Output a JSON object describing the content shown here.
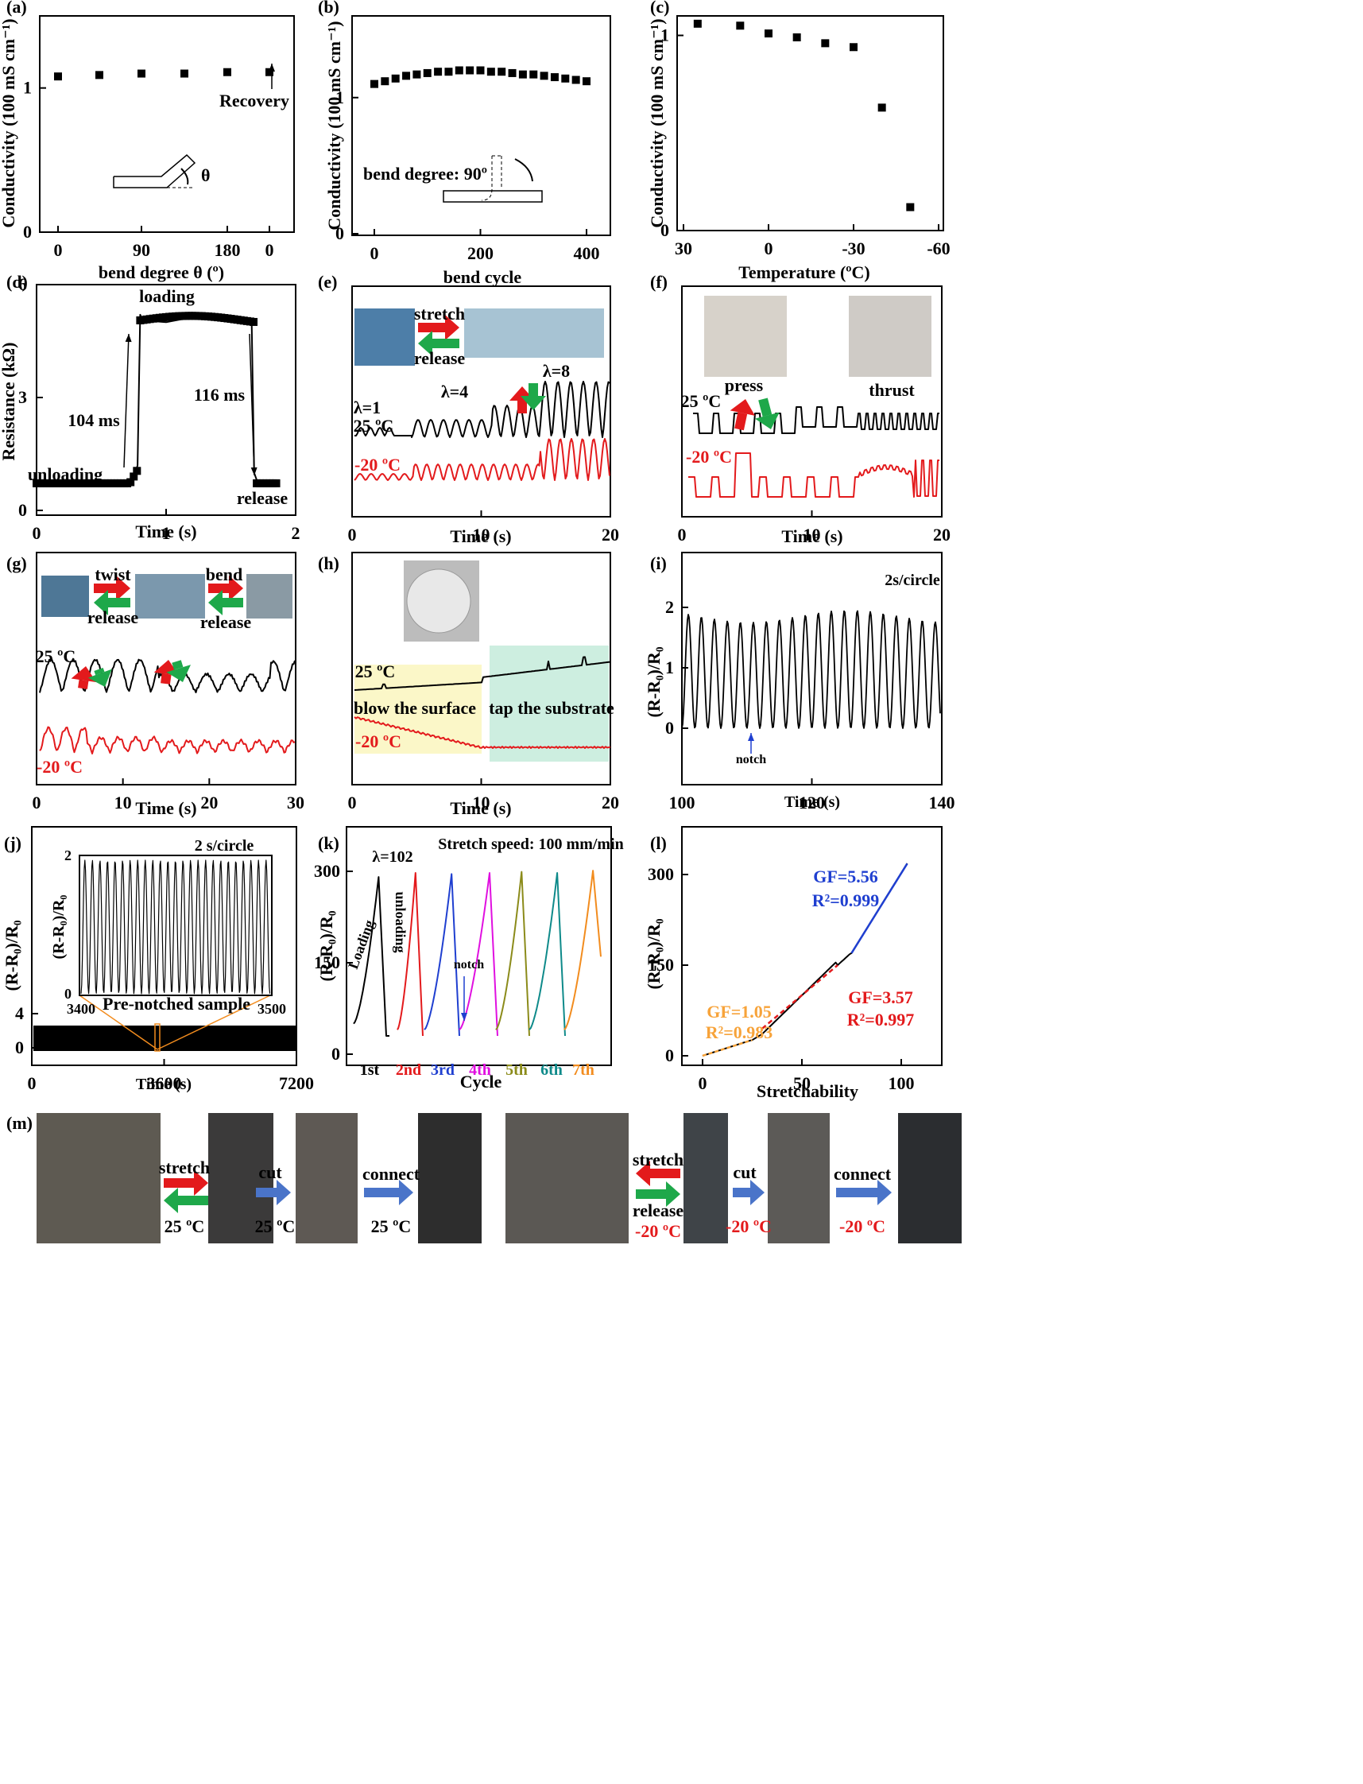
{
  "colors": {
    "red": "#e31a1c",
    "green": "#1ea84a",
    "blue": "#1f3fd0",
    "orange": "#f7a33a",
    "black": "#000000",
    "yellowbox": "#fbf7c8",
    "greenbox": "#cdeee0",
    "arrowblue": "#4a74c9",
    "magenta": "#e010e0",
    "olive": "#8b8b1a",
    "teal": "#0e8a8a",
    "orangeline": "#f28c1e"
  },
  "panels": {
    "a": {
      "label": "(a)",
      "ylabel": "Conductivity (100 mS cm⁻¹)",
      "xlabel": "bend degree θ (º)",
      "yticks": [
        "0",
        "1"
      ],
      "xticks": [
        "0",
        "90",
        "180",
        "0"
      ],
      "annotation": "Recovery",
      "theta": "θ"
    },
    "b": {
      "label": "(b)",
      "ylabel": "Conductivity (100 mS cm⁻¹)",
      "xlabel": "bend cycle",
      "yticks": [
        "0",
        "1"
      ],
      "xticks": [
        "0",
        "200",
        "400"
      ],
      "annotation": "bend degree: 90º"
    },
    "c": {
      "label": "(c)",
      "ylabel": "Conductivity (100 mS cm⁻¹)",
      "xlabel": "Temperature (ºC)",
      "yticks": [
        "0",
        "1"
      ],
      "xticks": [
        "30",
        "0",
        "-30",
        "-60"
      ]
    },
    "d": {
      "label": "(d)",
      "ylabel": "Resistance (kΩ)",
      "xlabel": "Time (s)",
      "yticks": [
        "0",
        "3",
        "6"
      ],
      "xticks": [
        "0",
        "1",
        "2"
      ],
      "loading": "loading",
      "unloading": "unloading",
      "release": "release",
      "t1": "104 ms",
      "t2": "116 ms"
    },
    "e": {
      "label": "(e)",
      "xlabel": "Time (s)",
      "xticks": [
        "0",
        "10",
        "20"
      ],
      "stretch": "stretch",
      "release": "release",
      "l1": "λ=1",
      "l4": "λ=4",
      "l8": "λ=8",
      "t25": "25 ºC",
      "tm20": "-20 ºC"
    },
    "f": {
      "label": "(f)",
      "xlabel": "Time (s)",
      "xticks": [
        "0",
        "10",
        "20"
      ],
      "press": "press",
      "thrust": "thrust",
      "t25": "25 ºC",
      "tm20": "-20 ºC"
    },
    "g": {
      "label": "(g)",
      "xlabel": "Time (s)",
      "xticks": [
        "0",
        "10",
        "20",
        "30"
      ],
      "twist": "twist",
      "bend": "bend",
      "release1": "release",
      "release2": "release",
      "t25": "25 ºC",
      "tm20": "-20 ºC"
    },
    "h": {
      "label": "(h)",
      "xlabel": "Time (s)",
      "xticks": [
        "0",
        "10",
        "20"
      ],
      "blow": "blow the surface",
      "tap": "tap the substrate",
      "t25": "25 ºC",
      "tm20": "-20 ºC"
    },
    "i": {
      "label": "(i)",
      "ylabel": "(R-R₀)/R₀",
      "xlabel": "Time (s)",
      "yticks": [
        "0",
        "1",
        "2"
      ],
      "xticks": [
        "100",
        "120",
        "140"
      ],
      "rate": "2s/circle",
      "notch": "notch"
    },
    "j": {
      "label": "(j)",
      "ylabel": "(R-R₀)/R₀",
      "xlabel": "Time (s)",
      "yticks": [
        "0",
        "4"
      ],
      "xticks": [
        "0",
        "3600",
        "7200"
      ],
      "inset_rate": "2 s/circle",
      "inset_ylabel": "(R-R₀)/R₀",
      "inset_yticks": [
        "0",
        "2"
      ],
      "inset_xticks": [
        "3400",
        "3500"
      ],
      "inset_caption": "Pre-notched sample"
    },
    "k": {
      "label": "(k)",
      "ylabel": "(R-R₀)/R₀",
      "xlabel": "Cycle",
      "yticks": [
        "0",
        "150",
        "300"
      ],
      "speed": "Stretch speed: 100 mm/min",
      "lambda": "λ=102",
      "loading": "Loading",
      "unloading": "unloading",
      "notch": "notch",
      "cycles": [
        "1st",
        "2nd",
        "3rd",
        "4th",
        "5th",
        "6th",
        "7th"
      ]
    },
    "l": {
      "label": "(l)",
      "ylabel": "(R-R₀)/R₀",
      "xlabel": "Stretchability",
      "yticks": [
        "0",
        "150",
        "300"
      ],
      "xticks": [
        "0",
        "50",
        "100"
      ],
      "gf1": "GF=1.05",
      "r1": "R²=0.983",
      "gf2": "GF=3.57",
      "r2": "R²=0.997",
      "gf3": "GF=5.56",
      "r3": "R²=0.999"
    },
    "m": {
      "label": "(m)",
      "stretch1": "stretch",
      "cut1": "cut",
      "connect1": "connect",
      "temp1": "25 ºC",
      "temp2": "25 ºC",
      "temp3": "25 ºC",
      "stretch2": "stretch",
      "release2": "release",
      "cut2": "cut",
      "connect2": "connect",
      "temp4": "-20 ºC",
      "temp5": "-20 ºC",
      "temp6": "-20 ºC"
    }
  },
  "chart_data": [
    {
      "type": "scatter",
      "panel": "a",
      "x": [
        1,
        2,
        3,
        4,
        5,
        6
      ],
      "values": [
        1.08,
        1.09,
        1.1,
        1.1,
        1.11,
        1.11
      ],
      "ylim": [
        0,
        1.5
      ]
    },
    {
      "type": "scatter",
      "panel": "b",
      "x": [
        0,
        20,
        40,
        60,
        80,
        100,
        120,
        140,
        160,
        180,
        200,
        220,
        240,
        260,
        280,
        300,
        320,
        340,
        360,
        380,
        400
      ],
      "values": [
        1.1,
        1.12,
        1.14,
        1.16,
        1.17,
        1.18,
        1.19,
        1.19,
        1.2,
        1.2,
        1.2,
        1.19,
        1.19,
        1.18,
        1.17,
        1.17,
        1.16,
        1.15,
        1.14,
        1.13,
        1.12
      ],
      "xlim": [
        -20,
        440
      ],
      "ylim": [
        0,
        1.6
      ]
    },
    {
      "type": "scatter",
      "panel": "c",
      "x": [
        25,
        10,
        0,
        -10,
        -20,
        -30,
        -40,
        -50
      ],
      "values": [
        1.06,
        1.05,
        1.01,
        0.99,
        0.96,
        0.94,
        0.63,
        0.12
      ],
      "xlim": [
        30,
        -60
      ],
      "ylim": [
        0,
        1.1
      ]
    },
    {
      "type": "line",
      "panel": "d",
      "series": [
        {
          "name": "",
          "x": [
            0,
            0.7,
            0.74,
            0.76,
            0.78,
            0.8,
            0.82,
            1.0,
            1.3,
            1.6,
            1.66,
            1.68,
            1.7,
            1.72,
            1.85
          ],
          "values": [
            0.72,
            0.72,
            0.75,
            0.95,
            1.2,
            5.2,
            5.05,
            5.0,
            5.2,
            5.05,
            5.1,
            1.0,
            0.8,
            0.7,
            0.7
          ]
        }
      ],
      "xlim": [
        0,
        2
      ],
      "ylim": [
        0,
        6
      ]
    },
    {
      "type": "scatter",
      "panel": "k",
      "x": [
        1,
        2,
        3,
        4,
        5,
        6,
        7
      ],
      "values": [
        310,
        318,
        316,
        318,
        320,
        318,
        322
      ],
      "ylim": [
        -10,
        340
      ]
    },
    {
      "type": "line",
      "panel": "l",
      "series": [
        {
          "name": "GF=5.56",
          "x": [
            75,
            103
          ],
          "values": [
            170,
            318
          ]
        },
        {
          "name": "GF=3.57",
          "x": [
            30,
            68
          ],
          "values": [
            45,
            150
          ]
        },
        {
          "name": "GF=1.05",
          "x": [
            0,
            25
          ],
          "values": [
            0,
            26
          ]
        }
      ],
      "xlim": [
        -10,
        115
      ],
      "ylim": [
        -10,
        340
      ]
    }
  ]
}
